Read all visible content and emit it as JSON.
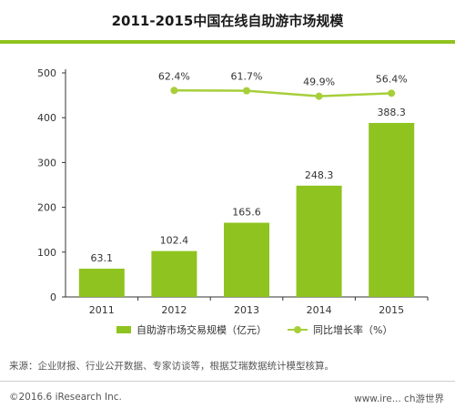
{
  "title": "2011-2015中国在线自助游市场规模",
  "colors": {
    "bar": "#8fc31f",
    "line": "#a6cf3a",
    "axis": "#333333",
    "text": "#333333"
  },
  "chart_data": {
    "type": "bar",
    "categories": [
      "2011",
      "2012",
      "2013",
      "2014",
      "2015"
    ],
    "series": [
      {
        "name": "自助游市场交易规模（亿元）",
        "type": "bar",
        "values": [
          63.1,
          102.4,
          165.6,
          248.3,
          388.3
        ],
        "labels": [
          "63.1",
          "102.4",
          "165.6",
          "248.3",
          "388.3"
        ]
      },
      {
        "name": "同比增长率（%）",
        "type": "line",
        "values": [
          null,
          62.4,
          61.7,
          49.9,
          56.4
        ],
        "labels": [
          "",
          "62.4%",
          "61.7%",
          "49.9%",
          "56.4%"
        ]
      }
    ],
    "yticks": [
      "0",
      "100",
      "200",
      "300",
      "400",
      "500"
    ],
    "ylim": [
      0,
      500
    ],
    "y2lim": [
      -380,
      100
    ],
    "grid": false,
    "legend": "bottom"
  },
  "legend": {
    "bar_label": "自助游市场交易规模（亿元）",
    "line_label": "同比增长率（%）"
  },
  "source": "来源：企业财报、行业公开数据、专家访谈等，根据艾瑞数据统计模型核算。",
  "copyright": "©2016.6 iResearch Inc.",
  "website": "www.ire... ch游世界"
}
